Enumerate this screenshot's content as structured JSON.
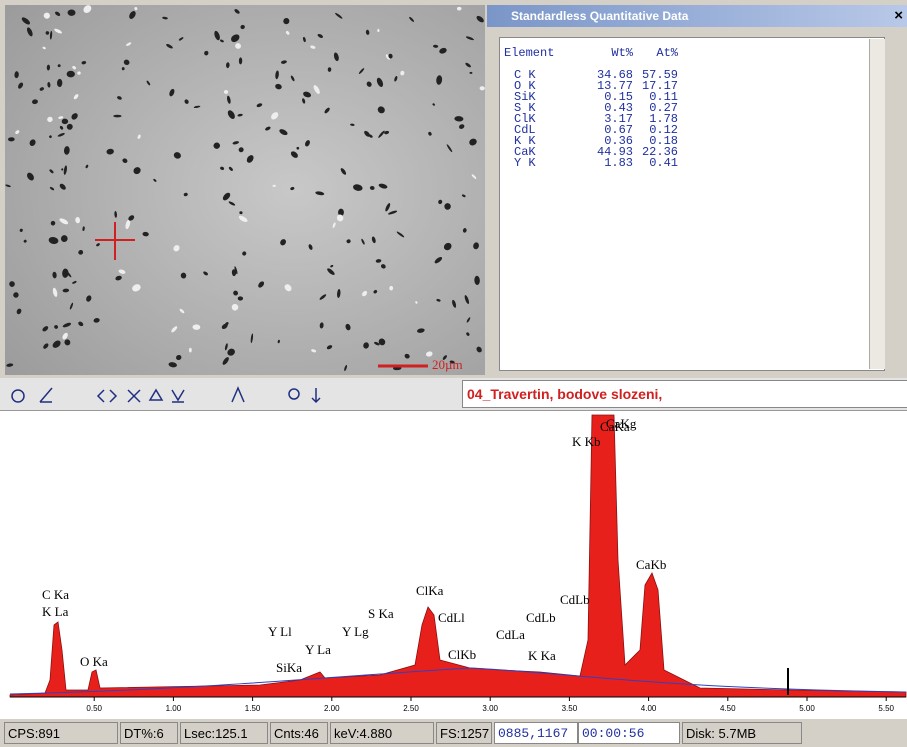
{
  "window": {
    "title": "Standardless Quantitative Data",
    "close": "×"
  },
  "table": {
    "header": [
      "Element",
      "Wt%",
      "At%"
    ],
    "rows": [
      [
        "C K",
        34.68,
        57.59
      ],
      [
        "O K",
        13.77,
        17.17
      ],
      [
        "SiK",
        0.15,
        0.11
      ],
      [
        "S K",
        0.43,
        0.27
      ],
      [
        "ClK",
        3.17,
        1.78
      ],
      [
        "CdL",
        0.67,
        0.12
      ],
      [
        "K K",
        0.36,
        0.18
      ],
      [
        "CaK",
        44.93,
        22.36
      ],
      [
        "Y K",
        1.83,
        0.41
      ]
    ]
  },
  "image": {
    "scale_label": "20µm"
  },
  "toolbar": {
    "spectrum_name": "04_Travertin, bodove slozeni,"
  },
  "spectrum": {
    "xticks": [
      {
        "value": 0.5,
        "label": "0.50"
      },
      {
        "value": 1,
        "label": "1.00"
      },
      {
        "value": 1.5,
        "label": "1.50"
      },
      {
        "value": 2,
        "label": "2.00"
      },
      {
        "value": 2.5,
        "label": "2.50"
      },
      {
        "value": 3,
        "label": "3.00"
      },
      {
        "value": 3.5,
        "label": "3.50"
      },
      {
        "value": 4,
        "label": "4.00"
      },
      {
        "value": 4.5,
        "label": "4.50"
      },
      {
        "value": 5,
        "label": "5.00"
      },
      {
        "value": 5.5,
        "label": "5.50"
      }
    ],
    "peak_labels": [
      "C Ka",
      "K La",
      "O Ka",
      "Y Ll",
      "Y La",
      "SiKa",
      "Y Lg",
      "S Ka",
      "ClKa",
      "CdLl",
      "ClKb",
      "CdLa",
      "K Ka",
      "CdLb",
      "CdLb",
      "CaKa",
      "CaKg",
      "K Kb",
      "CaKb"
    ]
  },
  "status": [
    "CPS:891",
    "DT%:6",
    "Lsec:125.1",
    "Cnts:46",
    "keV:4.880",
    "FS:1257",
    "0885,1167",
    "00:00:56",
    "Disk: 5.7MB"
  ]
}
